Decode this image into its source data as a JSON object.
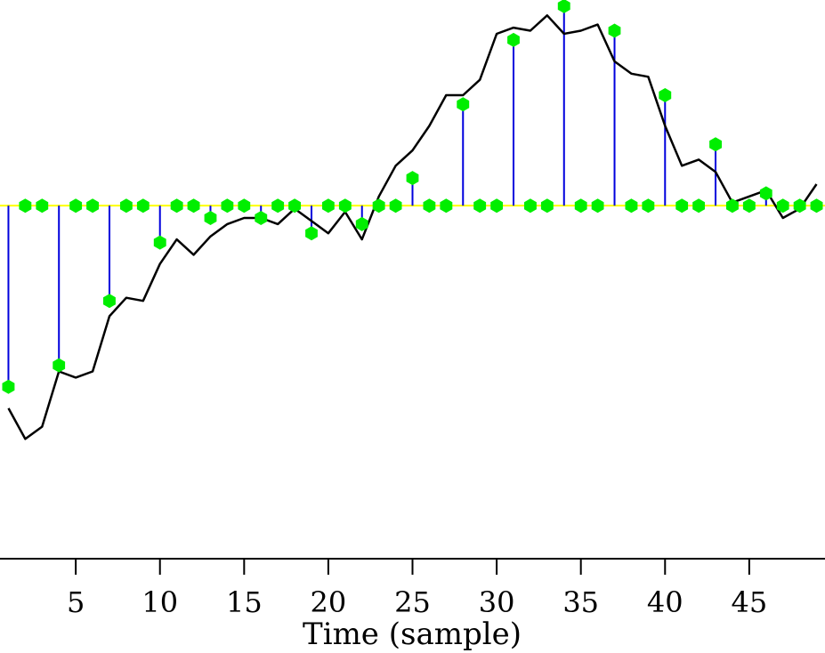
{
  "chart_data": {
    "type": "line",
    "xlabel": "Time (sample)",
    "ylabel": "",
    "title": "",
    "x_ticks": [
      5,
      10,
      15,
      20,
      25,
      30,
      35,
      40,
      45
    ],
    "xlim": [
      0.5,
      49.5
    ],
    "ylim": [
      -1.15,
      0.67
    ],
    "grid": false,
    "legend": "none",
    "colors": {
      "line": "#000000",
      "stems": "#0000dd",
      "markers": "#00ee00",
      "baseline": "#ffff00"
    },
    "series": [
      {
        "type": "line",
        "x": [
          1,
          2,
          3,
          4,
          5,
          6,
          7,
          8,
          9,
          10,
          11,
          12,
          13,
          14,
          15,
          16,
          17,
          18,
          19,
          20,
          21,
          22,
          23,
          24,
          25,
          26,
          27,
          28,
          29,
          30,
          31,
          32,
          33,
          34,
          35,
          36,
          37,
          38,
          39,
          40,
          41,
          42,
          43,
          44,
          45,
          46,
          47,
          48,
          49
        ],
        "values": [
          -0.66,
          -0.76,
          -0.72,
          -0.54,
          -0.56,
          -0.54,
          -0.36,
          -0.3,
          -0.31,
          -0.19,
          -0.11,
          -0.16,
          -0.1,
          -0.06,
          -0.04,
          -0.04,
          -0.06,
          -0.01,
          -0.05,
          -0.09,
          -0.02,
          -0.11,
          0.03,
          0.13,
          0.18,
          0.26,
          0.36,
          0.36,
          0.41,
          0.56,
          0.58,
          0.57,
          0.62,
          0.56,
          0.57,
          0.59,
          0.47,
          0.43,
          0.42,
          0.26,
          0.13,
          0.15,
          0.11,
          0.01,
          0.03,
          0.05,
          -0.04,
          -0.01,
          0.07
        ]
      },
      {
        "type": "stem",
        "x": [
          1,
          4,
          7,
          10,
          13,
          16,
          19,
          22,
          25,
          28,
          31,
          34,
          37,
          40,
          43,
          46
        ],
        "values": [
          -0.59,
          -0.52,
          -0.31,
          -0.12,
          -0.04,
          -0.04,
          -0.09,
          -0.06,
          0.09,
          0.33,
          0.54,
          0.65,
          0.57,
          0.36,
          0.2,
          0.04
        ]
      },
      {
        "type": "zeros",
        "x": [
          2,
          3,
          5,
          6,
          8,
          9,
          11,
          12,
          14,
          15,
          17,
          18,
          20,
          21,
          23,
          24,
          26,
          27,
          29,
          30,
          32,
          33,
          35,
          36,
          38,
          39,
          41,
          42,
          44,
          45,
          47,
          48,
          49
        ],
        "values": [
          0,
          0,
          0,
          0,
          0,
          0,
          0,
          0,
          0,
          0,
          0,
          0,
          0,
          0,
          0,
          0,
          0,
          0,
          0,
          0,
          0,
          0,
          0,
          0,
          0,
          0,
          0,
          0,
          0,
          0,
          0,
          0,
          0
        ]
      }
    ]
  }
}
